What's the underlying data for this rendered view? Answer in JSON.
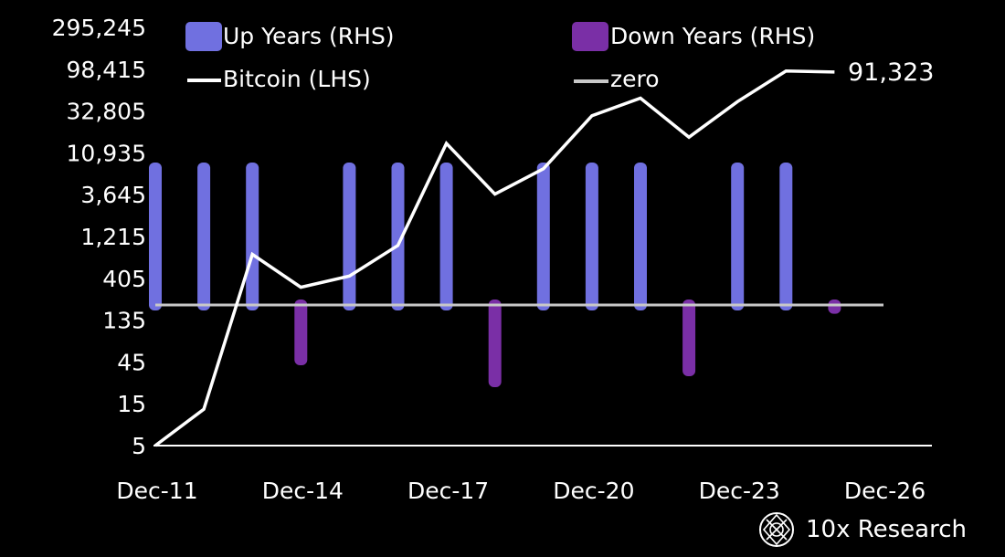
{
  "chart_data": {
    "type": "bar",
    "y_scale": "log",
    "y_ticks": [
      "295,245",
      "98,415",
      "32,805",
      "10,935",
      "3,645",
      "1,215",
      "405",
      "135",
      "45",
      "15",
      "5"
    ],
    "y_tick_values": [
      295245,
      98415,
      32805,
      10935,
      3645,
      1215,
      405,
      135,
      45,
      15,
      5
    ],
    "x_ticks": [
      "Dec-11",
      "Dec-14",
      "Dec-17",
      "Dec-20",
      "Dec-23",
      "Dec-26"
    ],
    "legend": {
      "up": "Up Years (RHS)",
      "down": "Down Years (RHS)",
      "btc": "Bitcoin (LHS)",
      "zero": "zero"
    },
    "colors": {
      "up": "#7070e0",
      "down": "#7a2fa6",
      "btc": "#ffffff",
      "zero": "#c8c8c8",
      "background": "#000000"
    },
    "years": [
      2011,
      2012,
      2013,
      2014,
      2015,
      2016,
      2017,
      2018,
      2019,
      2020,
      2021,
      2022,
      2023,
      2024,
      2025
    ],
    "bitcoin_year_end": [
      5,
      13,
      760,
      320,
      430,
      960,
      14000,
      3700,
      7200,
      29000,
      46000,
      16500,
      42000,
      94000,
      91323
    ],
    "annual_direction": [
      "up",
      "up",
      "up",
      "down",
      "up",
      "up",
      "up",
      "down",
      "up",
      "up",
      "up",
      "down",
      "up",
      "up",
      "down"
    ],
    "annual_magnitude": [
      1,
      1,
      1,
      0.55,
      1,
      1,
      1,
      0.75,
      1,
      1,
      1,
      0.65,
      1,
      1,
      0.08
    ],
    "end_label": "91,323"
  },
  "brand": {
    "name": "10x Research",
    "logo_icon": "10x-research-logo-icon"
  }
}
